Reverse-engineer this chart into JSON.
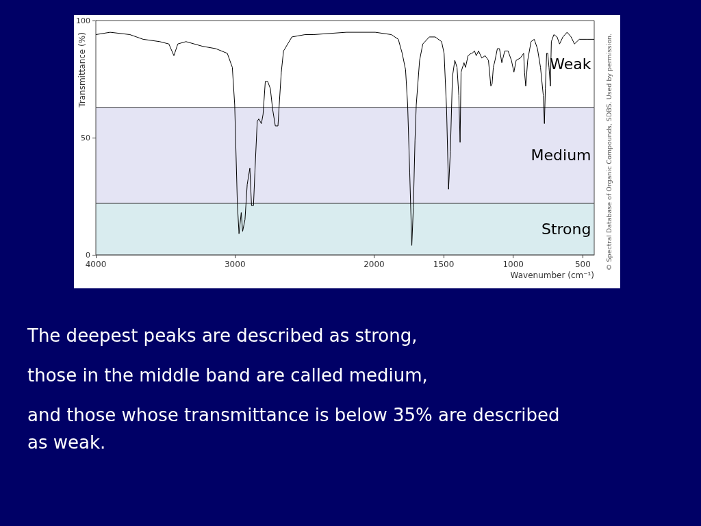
{
  "chart_data": {
    "type": "line",
    "xlabel": "Wavenumber (cm⁻¹)",
    "ylabel": "Transmittance (%)",
    "color": "#000000",
    "x": [
      4000,
      3897,
      3755,
      3660,
      3541,
      3475,
      3439,
      3411,
      3352,
      3233,
      3138,
      3055,
      3019,
      3002,
      2983,
      2971,
      2955,
      2945,
      2928,
      2912,
      2893,
      2881,
      2867,
      2857,
      2840,
      2829,
      2810,
      2798,
      2782,
      2765,
      2746,
      2729,
      2710,
      2691,
      2682,
      2667,
      2651,
      2591,
      2496,
      2436,
      2199,
      1992,
      1876,
      1826,
      1798,
      1774,
      1759,
      1744,
      1729,
      1718,
      1706,
      1697,
      1673,
      1650,
      1603,
      1561,
      1515,
      1497,
      1479,
      1465,
      1452,
      1437,
      1420,
      1404,
      1391,
      1382,
      1375,
      1354,
      1343,
      1325,
      1302,
      1296,
      1278,
      1266,
      1249,
      1226,
      1202,
      1178,
      1161,
      1152,
      1143,
      1131,
      1114,
      1099,
      1082,
      1061,
      1037,
      1013,
      995,
      979,
      949,
      925,
      919,
      910,
      896,
      872,
      849,
      826,
      804,
      784,
      776,
      769,
      760,
      752,
      743,
      733,
      726,
      708,
      685,
      667,
      643,
      613,
      584,
      560,
      525,
      471,
      418
    ],
    "values": [
      94,
      95,
      94,
      92,
      91,
      90,
      85,
      90,
      91,
      89,
      88,
      86,
      80,
      64,
      22,
      9,
      18,
      10,
      15,
      30,
      37,
      21,
      21,
      35,
      57,
      58,
      56,
      60,
      74,
      74,
      71,
      62,
      55,
      55,
      64,
      78,
      87,
      93,
      94,
      94,
      95,
      95,
      94,
      92,
      86,
      79,
      64,
      35,
      4,
      20,
      49,
      64,
      83,
      90,
      93,
      93,
      91,
      86,
      62,
      28,
      44,
      76,
      83,
      80,
      68,
      48,
      78,
      82,
      80,
      85,
      86,
      86,
      87,
      85,
      87,
      84,
      85,
      83,
      72,
      73,
      80,
      83,
      88,
      88,
      82,
      87,
      87,
      83,
      78,
      83,
      84,
      86,
      78,
      72,
      83,
      91,
      92,
      88,
      80,
      68,
      56,
      71,
      86,
      86,
      80,
      72,
      91,
      94,
      93,
      90,
      93,
      95,
      93,
      90,
      92,
      92,
      92
    ],
    "xlim": [
      4000,
      418
    ],
    "xticks": [
      4000,
      3000,
      2000,
      1500,
      1000,
      500
    ],
    "ylim": [
      0,
      100
    ],
    "yticks": [
      0,
      50,
      100
    ],
    "bands": [
      {
        "axis": "y",
        "from": 0,
        "to": 22,
        "label": "Strong",
        "color": "#d9ecef"
      },
      {
        "axis": "y",
        "from": 22,
        "to": 63,
        "label": "Medium",
        "color": "#e4e4f4"
      },
      {
        "axis": "y",
        "from": 63,
        "to": 100,
        "label": "Weak",
        "color": "#ffffff"
      }
    ],
    "annotations": [
      "© Spectral Database of Organic Compounds, SDBS. Used by permission.",
      "The deepest peaks are described as strong,",
      "those in the middle band are called medium,",
      "and those whose transmittance is below 35% are described as weak."
    ]
  }
}
